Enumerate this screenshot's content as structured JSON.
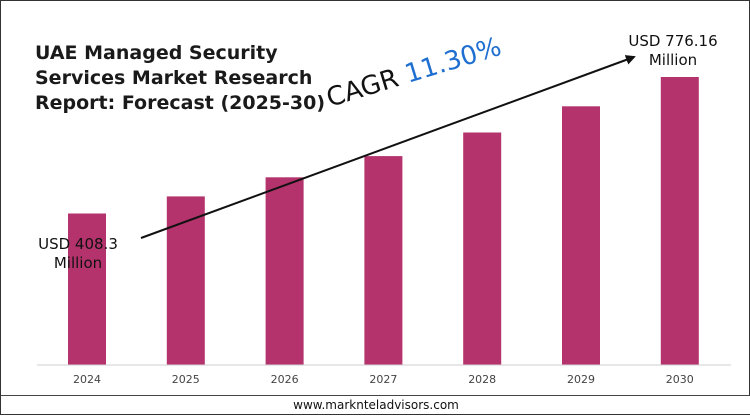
{
  "title_lines": [
    "UAE Managed Security",
    "Services Market Research",
    "Report: Forecast (2025-30)"
  ],
  "cagr": {
    "label": "CAGR",
    "value": "11.30%"
  },
  "start_label": {
    "line1": "USD 408.3",
    "line2": "Million"
  },
  "end_label": {
    "line1": "USD 776.16",
    "line2": "Million"
  },
  "footer": "www.marknteladvisors.com",
  "colors": {
    "bar": "#b5336c",
    "axis": "#cfcfcf",
    "tick_text": "#444444",
    "arrow": "#111111",
    "cagr_value": "#1f6fd1"
  },
  "chart_data": {
    "type": "bar",
    "categories": [
      "2024",
      "2025",
      "2026",
      "2027",
      "2028",
      "2029",
      "2030"
    ],
    "values": [
      408.3,
      454.4,
      505.8,
      562.9,
      626.5,
      697.3,
      776.16
    ],
    "unit": "USD Million",
    "title": "UAE Managed Security Services Market Research Report: Forecast (2025-30)",
    "xlabel": "",
    "ylabel": "",
    "ylim": [
      0,
      776.16
    ],
    "grid": false,
    "legend": "none",
    "annotations": [
      "USD 408.3 Million",
      "USD 776.16 Million",
      "CAGR 11.30%"
    ]
  }
}
